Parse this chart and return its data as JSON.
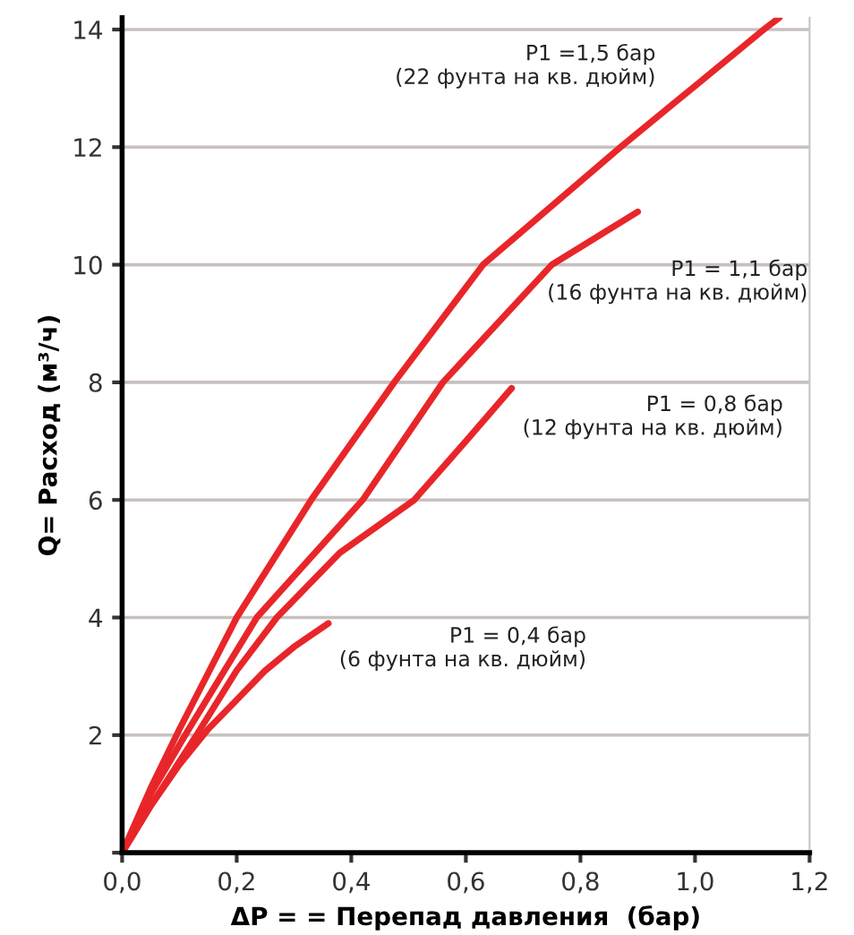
{
  "chart_data": {
    "type": "line",
    "xlabel": "ΔP = = Перепад давления  (бар)",
    "ylabel": "Q= Расход (м³/ч)",
    "series": [
      {
        "name": "P1 = 0,4 бар\n(6 фунта на кв. дюйм)",
        "color": "#e8262a",
        "x": [
          0,
          0.05,
          0.1,
          0.15,
          0.2,
          0.25,
          0.3,
          0.36
        ],
        "values": [
          0,
          0.8,
          1.5,
          2.1,
          2.6,
          3.1,
          3.5,
          3.9
        ]
      },
      {
        "name": "P1 = 0,8 бар\n(12 фунта на кв. дюйм)",
        "color": "#e8262a",
        "x": [
          0,
          0.05,
          0.13,
          0.2,
          0.27,
          0.38,
          0.51,
          0.6,
          0.68
        ],
        "values": [
          0,
          0.8,
          2,
          3.1,
          4,
          5.1,
          6,
          7,
          7.9
        ]
      },
      {
        "name": "P1 = 1,1 бар\n(16 фунта на кв. дюйм)",
        "color": "#e8262a",
        "x": [
          0,
          0.05,
          0.11,
          0.235,
          0.42,
          0.56,
          0.75,
          0.9
        ],
        "values": [
          0,
          1,
          2,
          4,
          6,
          8,
          10,
          10.9
        ]
      },
      {
        "name": "P1 =1,5 бар\n(22 фунта на кв. дюйм)",
        "color": "#e8262a",
        "x": [
          0,
          0.05,
          0.1,
          0.2,
          0.33,
          0.475,
          0.63,
          0.87,
          1.12,
          1.147
        ],
        "values": [
          0,
          1.1,
          2.1,
          4,
          6,
          8,
          10,
          12,
          14,
          14.2
        ]
      }
    ],
    "xlim": [
      0,
      1.2
    ],
    "ylim": [
      0,
      14.2
    ],
    "xticks": [
      {
        "value": 0,
        "label": "0,0"
      },
      {
        "value": 0.2,
        "label": "0,2"
      },
      {
        "value": 0.4,
        "label": "0,4"
      },
      {
        "value": 0.6,
        "label": "0,6"
      },
      {
        "value": 0.8,
        "label": "0,8"
      },
      {
        "value": 1.0,
        "label": "1,0"
      },
      {
        "value": 1.2,
        "label": "1,2"
      }
    ],
    "yticks": [
      {
        "value": 0,
        "label": null
      },
      2,
      4,
      6,
      8,
      10,
      12,
      14
    ],
    "grid": "y",
    "legend": false,
    "marker": "none",
    "line_style": "solid"
  }
}
